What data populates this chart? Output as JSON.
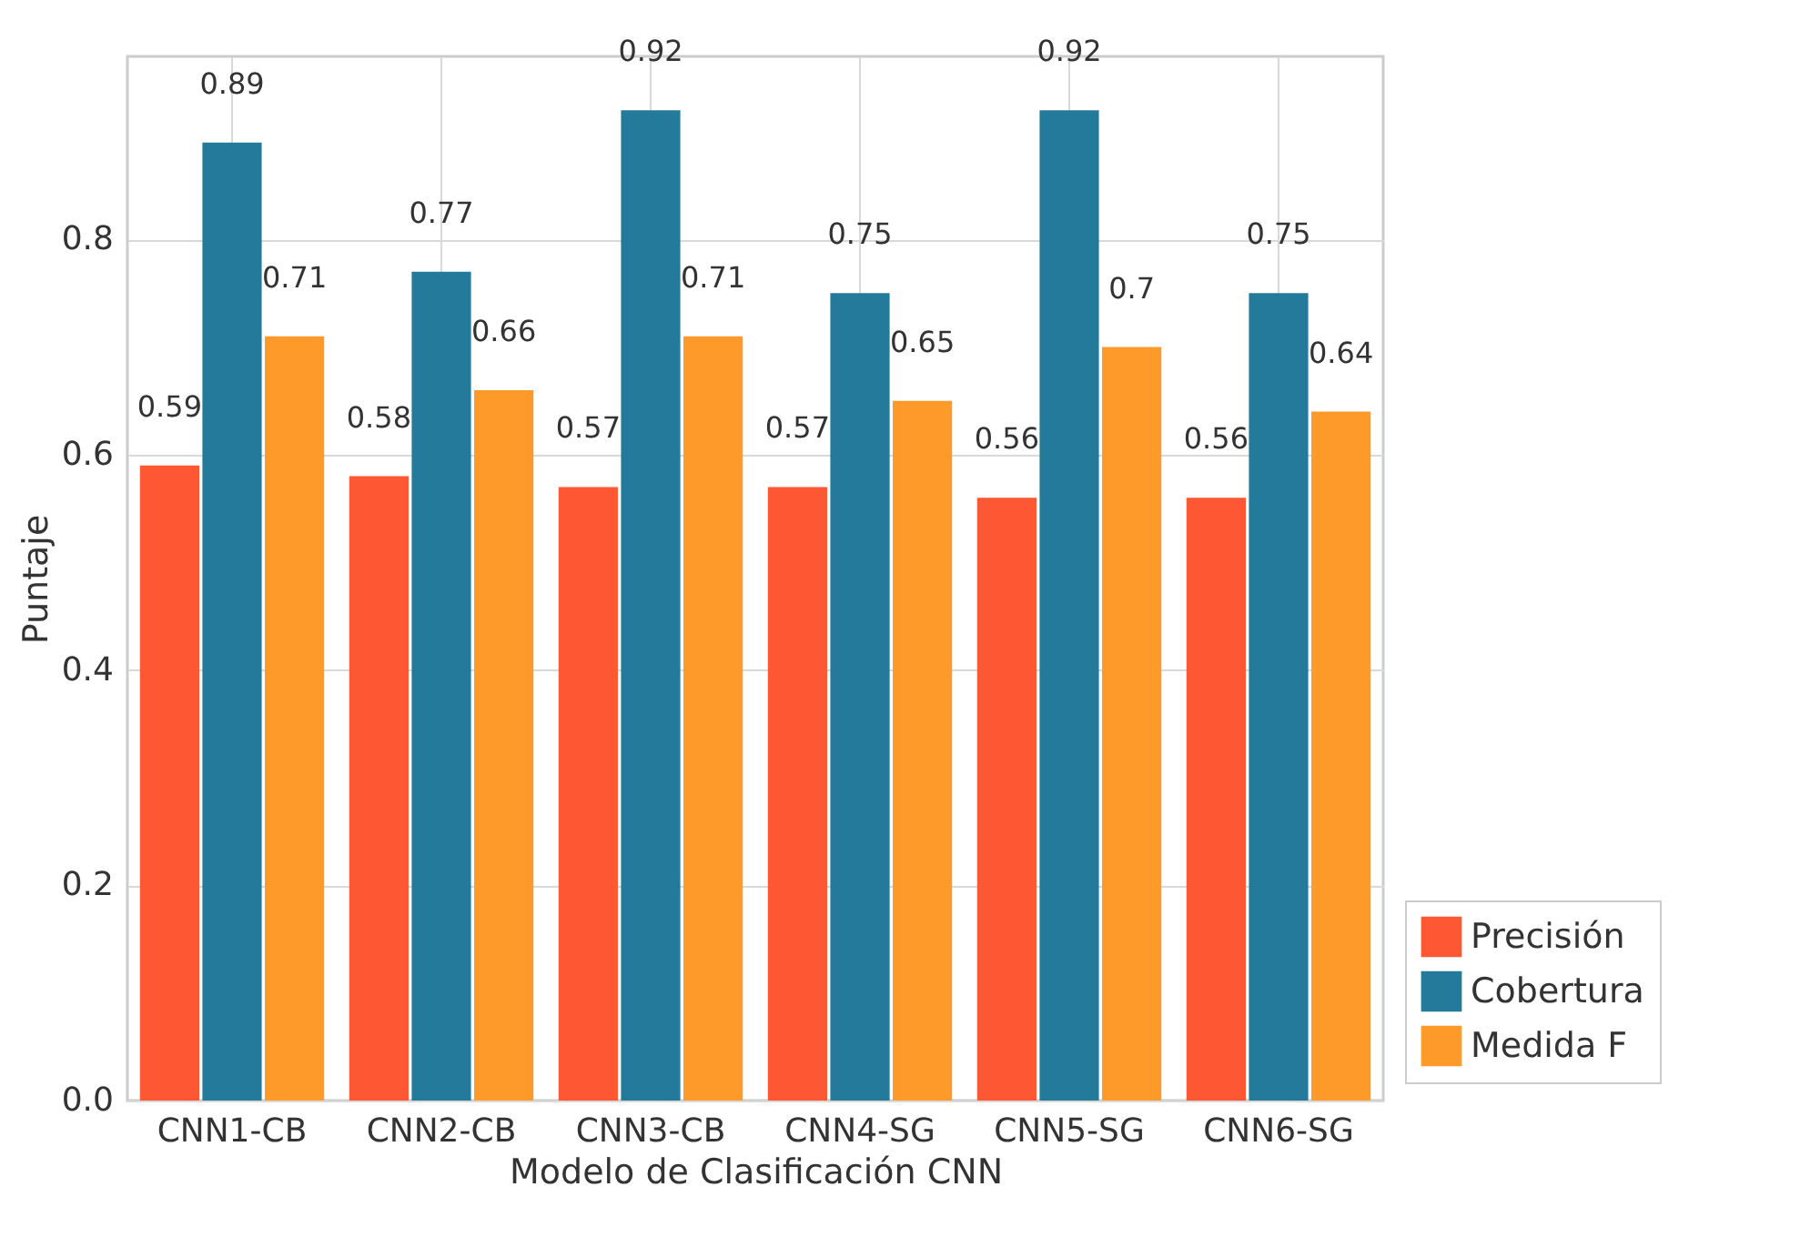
{
  "chart_data": {
    "type": "bar",
    "xlabel": "Modelo de Clasificación CNN",
    "ylabel": "Puntaje",
    "categories": [
      "CNN1-CB",
      "CNN2-CB",
      "CNN3-CB",
      "CNN4-SG",
      "CNN5-SG",
      "CNN6-SG"
    ],
    "series": [
      {
        "name": "Precisión",
        "color": "#fe5733",
        "values": [
          0.59,
          0.58,
          0.57,
          0.57,
          0.56,
          0.56
        ]
      },
      {
        "name": "Cobertura",
        "color": "#247a9b",
        "values": [
          0.89,
          0.77,
          0.92,
          0.75,
          0.92,
          0.75
        ]
      },
      {
        "name": "Medida F",
        "color": "#fd9a2a",
        "values": [
          0.71,
          0.66,
          0.71,
          0.65,
          0.7,
          0.64
        ]
      }
    ],
    "ylim": [
      0,
      0.97
    ],
    "yticks": [
      {
        "value": 0,
        "label": "0.0"
      },
      0.2,
      0.4,
      0.6,
      0.8
    ],
    "grid": true,
    "legend": "bottom right",
    "data_labels": true
  }
}
